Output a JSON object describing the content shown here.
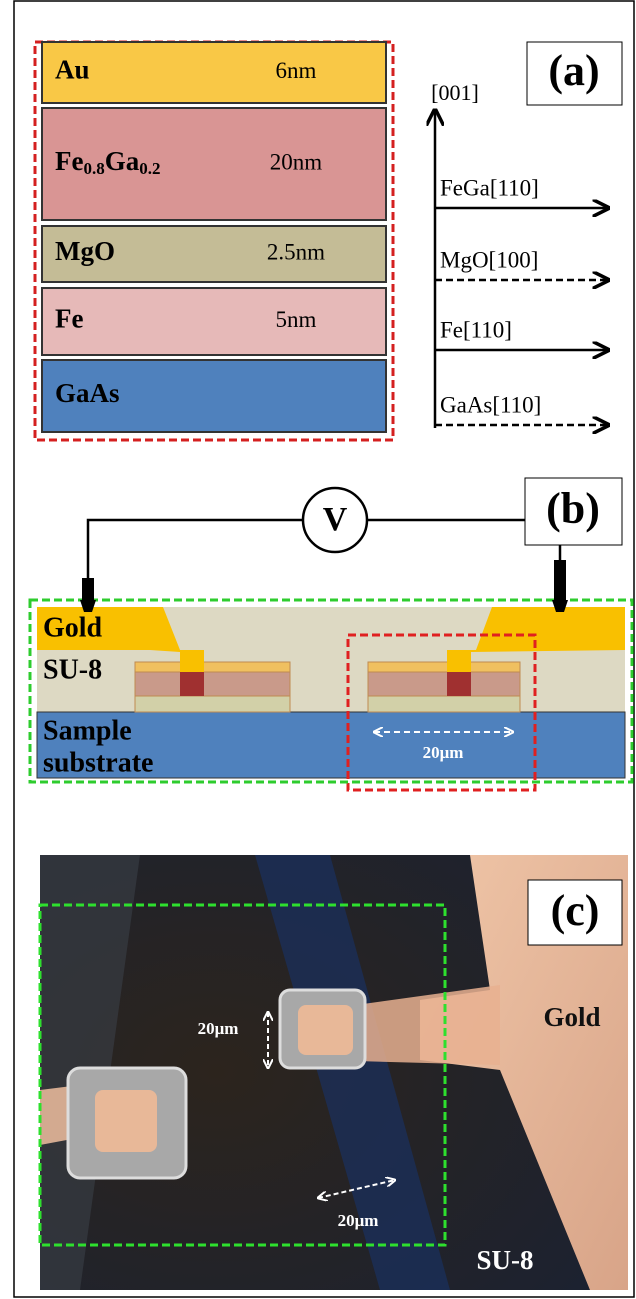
{
  "panel_a": {
    "label": "(a)",
    "layers": [
      {
        "name": [
          "Au"
        ],
        "thickness": "6nm",
        "color": "#f9c846"
      },
      {
        "name": [
          "Fe",
          "0.8",
          "Ga",
          "0.2"
        ],
        "thickness": "20nm",
        "color": "#d99594"
      },
      {
        "name": [
          "MgO"
        ],
        "thickness": "2.5nm",
        "color": "#c4bc96"
      },
      {
        "name": [
          "Fe"
        ],
        "thickness": "5nm",
        "color": "#e6b9b8"
      },
      {
        "name": [
          "GaAs"
        ],
        "thickness": "",
        "color": "#4f81bd"
      }
    ],
    "vertical_axis": "[001]",
    "directions": [
      {
        "label": "FeGa[110]",
        "style": "solid"
      },
      {
        "label": "MgO[100]",
        "style": "dashed"
      },
      {
        "label": "Fe[110]",
        "style": "solid"
      },
      {
        "label": "GaAs[110]",
        "style": "dashed"
      }
    ]
  },
  "panel_b": {
    "label": "(b)",
    "meter": "V",
    "gold": "Gold",
    "resist": "SU-8",
    "substrate": [
      "Sample",
      "substrate"
    ],
    "scale": "20μm"
  },
  "panel_c": {
    "label": "(c)",
    "gold": "Gold",
    "resist": "SU-8",
    "scales": [
      "20μm",
      "20μm"
    ]
  }
}
